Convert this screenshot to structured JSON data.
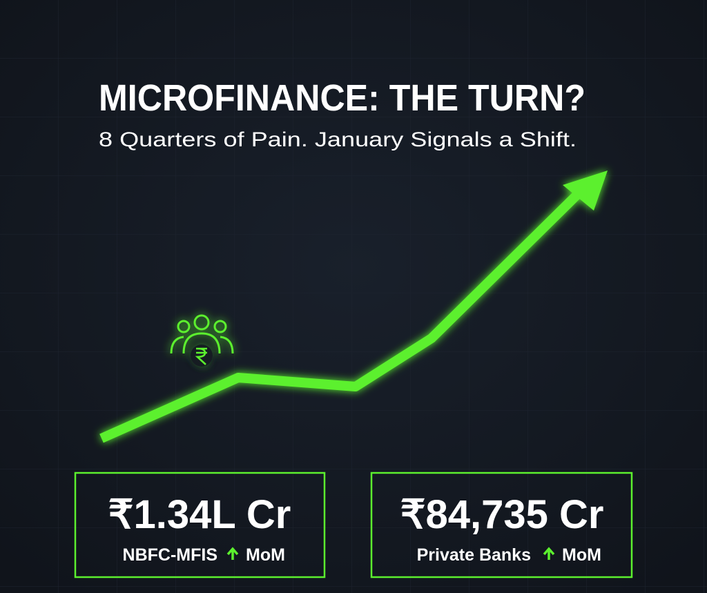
{
  "header": {
    "title": "MICROFINANCE: THE TURN?",
    "subtitle": "8 Quarters of Pain. January Signals a Shift."
  },
  "cards": [
    {
      "value": "₹1.34L Cr",
      "label": "NBFC-MFIS",
      "change": "MoM"
    },
    {
      "value": "₹84,735 Cr",
      "label": "Private Banks",
      "change": "MoM"
    }
  ]
}
